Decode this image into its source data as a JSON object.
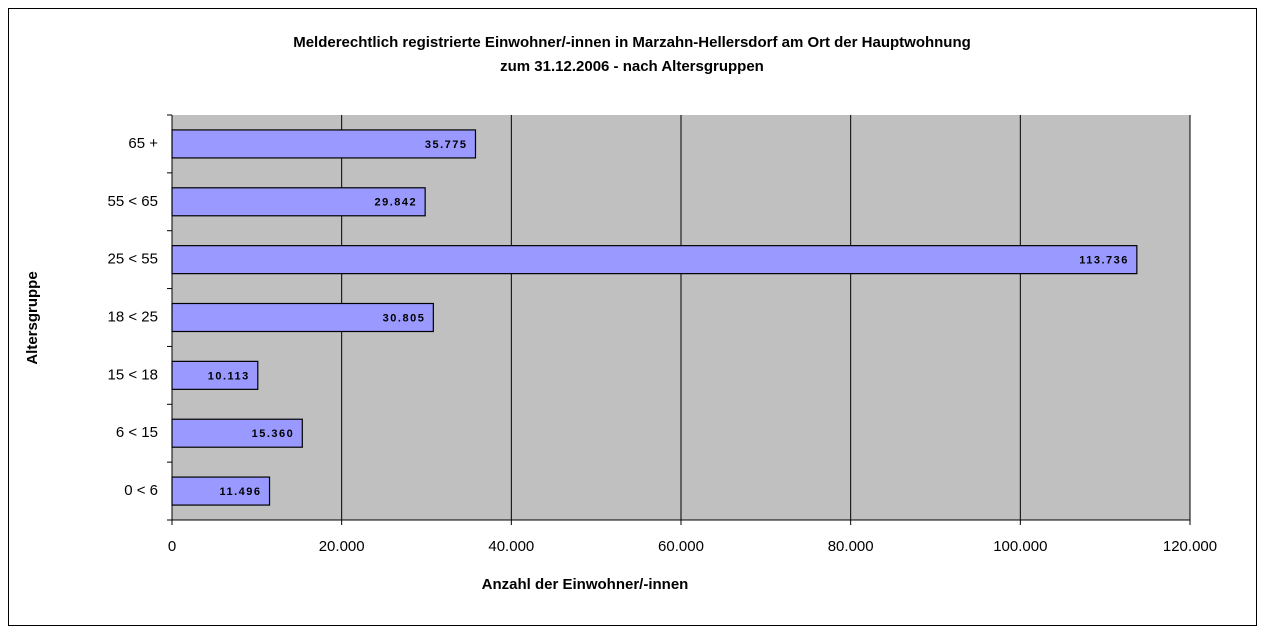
{
  "chart_data": {
    "type": "barh",
    "title": [
      "Melderechtlich registrierte Einwohner/-innen in Marzahn-Hellersdorf am Ort der Hauptwohnung",
      "zum 31.12.2006 - nach Altersgruppen"
    ],
    "xlabel": "Anzahl der Einwohner/-innen",
    "ylabel": "Altersgruppe",
    "categories": [
      "0 < 6",
      "6 < 15",
      "15 < 18",
      "18 < 25",
      "25 < 55",
      "55 < 65",
      "65 +"
    ],
    "values": [
      11496,
      15360,
      10113,
      30805,
      113736,
      29842,
      35775
    ],
    "value_labels": [
      "11.496",
      "15.360",
      "10.113",
      "30.805",
      "113.736",
      "29.842",
      "35.775"
    ],
    "color": "#9999ff",
    "xlim": [
      0,
      120000
    ],
    "xticks": [
      0,
      {
        "value": 20000,
        "label": "20.000"
      },
      {
        "value": 40000,
        "label": "40.000"
      },
      {
        "value": 60000,
        "label": "60.000"
      },
      {
        "value": 80000,
        "label": "80.000"
      },
      {
        "value": 100000,
        "label": "100.000"
      },
      {
        "value": 120000,
        "label": "120.000"
      }
    ],
    "grid": true
  }
}
